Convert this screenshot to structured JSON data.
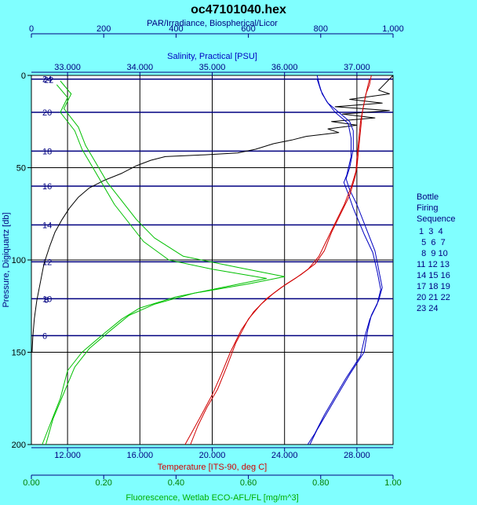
{
  "chart_data": {
    "type": "line",
    "title": "oc47101040.hex",
    "colors": {
      "background": "#80ffff",
      "plot_background": "#ffffff",
      "par": "#000000",
      "salinity": "#0000c0",
      "temperature": "#d00000",
      "fluorescence": "#00c000",
      "bottle_lines": "#000080",
      "grid": "#000000"
    },
    "y_axis": {
      "label": "Pressure, Digiquartz [db]",
      "range": [
        0,
        200
      ],
      "inverted": true,
      "ticks": [
        "0",
        "50",
        "100",
        "150",
        "200"
      ]
    },
    "x_axes": [
      {
        "id": "par",
        "position": "top-outer",
        "label": "PAR/Irradiance, Biospherical/Licor",
        "range": [
          0,
          1000
        ],
        "ticks": [
          {
            "v": 0,
            "t": "0"
          },
          {
            "v": 200,
            "t": "200"
          },
          {
            "v": 400,
            "t": "400"
          },
          {
            "v": 600,
            "t": "600"
          },
          {
            "v": 800,
            "t": "800"
          },
          {
            "v": 1000,
            "t": "1,000"
          }
        ]
      },
      {
        "id": "salinity",
        "position": "top-inner",
        "label": "Salinity, Practical [PSU]",
        "range": [
          32.5,
          37.5
        ],
        "ticks": [
          {
            "v": 33,
            "t": "33.000"
          },
          {
            "v": 34,
            "t": "34.000"
          },
          {
            "v": 35,
            "t": "35.000"
          },
          {
            "v": 36,
            "t": "36.000"
          },
          {
            "v": 37,
            "t": "37.000"
          }
        ]
      },
      {
        "id": "temperature",
        "position": "bottom-inner",
        "label": "Temperature [ITS-90, deg C]",
        "range": [
          10,
          30
        ],
        "ticks": [
          {
            "v": 12,
            "t": "12.000"
          },
          {
            "v": 16,
            "t": "16.000"
          },
          {
            "v": 20,
            "t": "20.000"
          },
          {
            "v": 24,
            "t": "24.000"
          },
          {
            "v": 28,
            "t": "28.000"
          }
        ]
      },
      {
        "id": "fluorescence",
        "position": "bottom-outer",
        "label": "Fluorescence, Wetlab ECO-AFL/FL [mg/m^3]",
        "range": [
          0,
          1
        ],
        "ticks": [
          {
            "v": 0,
            "t": "0.00"
          },
          {
            "v": 0.2,
            "t": "0.20"
          },
          {
            "v": 0.4,
            "t": "0.40"
          },
          {
            "v": 0.6,
            "t": "0.60"
          },
          {
            "v": 0.8,
            "t": "0.80"
          },
          {
            "v": 1,
            "t": "1.00"
          }
        ]
      }
    ],
    "series": [
      {
        "axis": "par",
        "points": [
          [
            1000,
            0
          ],
          [
            960,
            8
          ],
          [
            990,
            10
          ],
          [
            880,
            13
          ],
          [
            970,
            15
          ],
          [
            840,
            17
          ],
          [
            990,
            19
          ],
          [
            860,
            21
          ],
          [
            950,
            23
          ],
          [
            830,
            25
          ],
          [
            900,
            27
          ],
          [
            820,
            29
          ],
          [
            850,
            31
          ],
          [
            760,
            33
          ],
          [
            720,
            35
          ],
          [
            670,
            37
          ],
          [
            620,
            40
          ],
          [
            570,
            42
          ],
          [
            480,
            43
          ],
          [
            370,
            44
          ],
          [
            330,
            46
          ],
          [
            290,
            49
          ],
          [
            250,
            53
          ],
          [
            200,
            57
          ],
          [
            160,
            61
          ],
          [
            130,
            66
          ],
          [
            105,
            72
          ],
          [
            85,
            78
          ],
          [
            65,
            85
          ],
          [
            50,
            93
          ],
          [
            35,
            102
          ],
          [
            25,
            112
          ],
          [
            15,
            122
          ],
          [
            8,
            132
          ],
          [
            4,
            142
          ],
          [
            2,
            150
          ]
        ]
      },
      {
        "axis": "salinity",
        "points": [
          [
            36.45,
            0
          ],
          [
            36.48,
            5
          ],
          [
            36.52,
            10
          ],
          [
            36.6,
            15
          ],
          [
            36.75,
            20
          ],
          [
            36.9,
            25
          ],
          [
            36.95,
            30
          ],
          [
            36.95,
            40
          ],
          [
            36.9,
            50
          ],
          [
            36.85,
            56
          ],
          [
            36.9,
            62
          ],
          [
            37.0,
            70
          ],
          [
            37.15,
            85
          ],
          [
            37.25,
            95
          ],
          [
            37.3,
            105
          ],
          [
            37.35,
            115
          ],
          [
            37.3,
            122
          ],
          [
            37.2,
            130
          ],
          [
            37.15,
            138
          ],
          [
            37.1,
            150
          ],
          [
            36.9,
            162
          ],
          [
            36.75,
            172
          ],
          [
            36.6,
            182
          ],
          [
            36.45,
            192
          ],
          [
            36.35,
            200
          ]
        ]
      },
      {
        "axis": "salinity",
        "points": [
          [
            36.45,
            2
          ],
          [
            36.5,
            8
          ],
          [
            36.58,
            14
          ],
          [
            36.7,
            20
          ],
          [
            36.88,
            26
          ],
          [
            36.92,
            34
          ],
          [
            36.92,
            44
          ],
          [
            36.86,
            54
          ],
          [
            36.82,
            58
          ],
          [
            36.88,
            64
          ],
          [
            36.95,
            72
          ],
          [
            37.1,
            86
          ],
          [
            37.22,
            96
          ],
          [
            37.28,
            106
          ],
          [
            37.33,
            116
          ],
          [
            37.28,
            124
          ],
          [
            37.18,
            132
          ],
          [
            37.12,
            140
          ],
          [
            37.05,
            152
          ],
          [
            36.85,
            164
          ],
          [
            36.7,
            174
          ],
          [
            36.55,
            184
          ],
          [
            36.42,
            194
          ],
          [
            36.32,
            200
          ]
        ]
      },
      {
        "axis": "temperature",
        "points": [
          [
            28.8,
            0
          ],
          [
            28.7,
            5
          ],
          [
            28.5,
            10
          ],
          [
            28.3,
            20
          ],
          [
            28.2,
            30
          ],
          [
            28.1,
            40
          ],
          [
            28.0,
            50
          ],
          [
            27.9,
            55
          ],
          [
            27.6,
            65
          ],
          [
            27.1,
            75
          ],
          [
            26.6,
            85
          ],
          [
            26.2,
            95
          ],
          [
            25.7,
            102
          ],
          [
            24.9,
            108
          ],
          [
            24.1,
            113
          ],
          [
            23.4,
            118
          ],
          [
            22.7,
            124
          ],
          [
            22.0,
            132
          ],
          [
            21.3,
            145
          ],
          [
            20.8,
            158
          ],
          [
            20.3,
            170
          ],
          [
            19.7,
            180
          ],
          [
            19.2,
            190
          ],
          [
            18.8,
            200
          ]
        ]
      },
      {
        "axis": "temperature",
        "points": [
          [
            28.7,
            2
          ],
          [
            28.55,
            8
          ],
          [
            28.4,
            15
          ],
          [
            28.2,
            25
          ],
          [
            28.1,
            35
          ],
          [
            28.0,
            45
          ],
          [
            27.95,
            52
          ],
          [
            27.7,
            60
          ],
          [
            27.3,
            70
          ],
          [
            26.8,
            80
          ],
          [
            26.3,
            90
          ],
          [
            25.9,
            98
          ],
          [
            25.3,
            105
          ],
          [
            24.6,
            110
          ],
          [
            23.8,
            115
          ],
          [
            23.0,
            121
          ],
          [
            22.3,
            128
          ],
          [
            21.6,
            138
          ],
          [
            21.0,
            150
          ],
          [
            20.5,
            162
          ],
          [
            20.0,
            173
          ],
          [
            19.4,
            184
          ],
          [
            18.9,
            193
          ],
          [
            18.5,
            200
          ]
        ]
      },
      {
        "axis": "fluorescence",
        "points": [
          [
            0.07,
            5
          ],
          [
            0.1,
            12
          ],
          [
            0.08,
            20
          ],
          [
            0.12,
            30
          ],
          [
            0.14,
            40
          ],
          [
            0.17,
            50
          ],
          [
            0.2,
            60
          ],
          [
            0.23,
            70
          ],
          [
            0.27,
            80
          ],
          [
            0.31,
            90
          ],
          [
            0.38,
            100
          ],
          [
            0.5,
            105
          ],
          [
            0.65,
            110
          ],
          [
            0.55,
            114
          ],
          [
            0.4,
            120
          ],
          [
            0.3,
            126
          ],
          [
            0.25,
            132
          ],
          [
            0.2,
            140
          ],
          [
            0.14,
            150
          ],
          [
            0.1,
            160
          ],
          [
            0.08,
            175
          ],
          [
            0.05,
            190
          ],
          [
            0.03,
            200
          ]
        ]
      },
      {
        "axis": "fluorescence",
        "points": [
          [
            0.08,
            3
          ],
          [
            0.11,
            10
          ],
          [
            0.09,
            18
          ],
          [
            0.13,
            28
          ],
          [
            0.15,
            38
          ],
          [
            0.18,
            48
          ],
          [
            0.21,
            58
          ],
          [
            0.25,
            68
          ],
          [
            0.29,
            78
          ],
          [
            0.34,
            88
          ],
          [
            0.42,
            98
          ],
          [
            0.57,
            104
          ],
          [
            0.7,
            109
          ],
          [
            0.6,
            113
          ],
          [
            0.45,
            118
          ],
          [
            0.34,
            124
          ],
          [
            0.27,
            130
          ],
          [
            0.22,
            138
          ],
          [
            0.16,
            148
          ],
          [
            0.12,
            158
          ],
          [
            0.09,
            172
          ],
          [
            0.06,
            186
          ],
          [
            0.04,
            200
          ]
        ]
      }
    ],
    "bottle_firings": [
      {
        "p": 2,
        "labels": [
          "24",
          "22"
        ]
      },
      {
        "p": 20,
        "labels": [
          "20"
        ]
      },
      {
        "p": 41,
        "labels": [
          "18"
        ]
      },
      {
        "p": 60,
        "labels": [
          "16"
        ]
      },
      {
        "p": 81,
        "labels": [
          "14"
        ]
      },
      {
        "p": 101,
        "labels": [
          "12"
        ]
      },
      {
        "p": 121,
        "labels": [
          "10",
          "8"
        ]
      },
      {
        "p": 141,
        "labels": [
          "6"
        ]
      }
    ],
    "legend": {
      "position": "right",
      "title": [
        "Bottle",
        "Firing",
        "Sequence"
      ],
      "rows": [
        " 1  3  4",
        "  5  6  7",
        "  8  9 10",
        "11 12 13",
        "14 15 16",
        "17 18 19",
        "20 21 22",
        "23 24"
      ]
    }
  }
}
